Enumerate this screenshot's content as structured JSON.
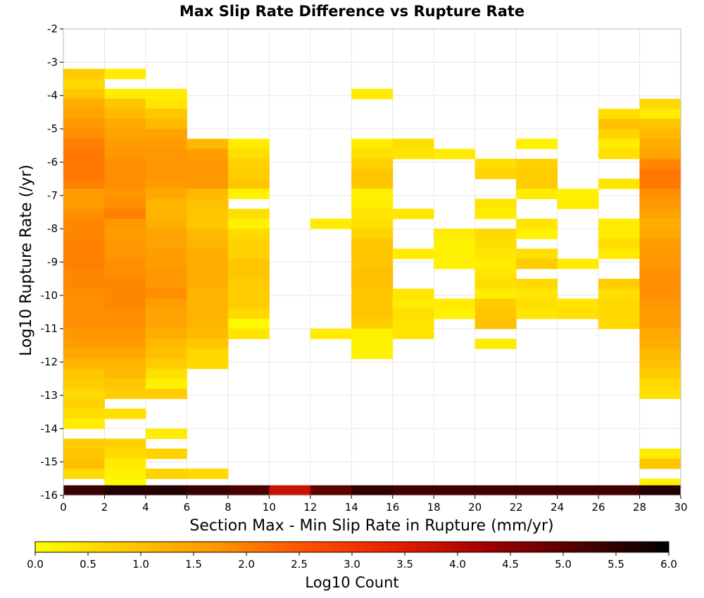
{
  "chart_data": {
    "type": "heatmap",
    "title": "Max Slip Rate Difference vs Rupture Rate",
    "xlabel": "Section Max - Min Slip Rate in Rupture (mm/yr)",
    "ylabel": "Log10 Rupture Rate (/yr)",
    "xlim": [
      0,
      30
    ],
    "ylim": [
      -16,
      -2
    ],
    "x_ticks": [
      "0",
      "2",
      "4",
      "6",
      "8",
      "10",
      "12",
      "14",
      "16",
      "18",
      "20",
      "22",
      "24",
      "26",
      "28",
      "30"
    ],
    "y_ticks": [
      "-2",
      "-3",
      "-4",
      "-5",
      "-6",
      "-7",
      "-8",
      "-9",
      "-10",
      "-11",
      "-12",
      "-13",
      "-14",
      "-15",
      "-16"
    ],
    "grid": true,
    "x_bin_width": 2,
    "y_bin_height": 0.3,
    "colorbar": {
      "label": "Log10 Count",
      "range": [
        0,
        6
      ],
      "ticks": [
        "0.0",
        "0.5",
        "1.0",
        "1.5",
        "2.0",
        "2.5",
        "3.0",
        "3.5",
        "4.0",
        "4.5",
        "5.0",
        "5.5",
        "6.0"
      ],
      "placement": "bottom",
      "colors": [
        "#ffff00",
        "#ffc800",
        "#ff9600",
        "#ff5000",
        "#e61e00",
        "#a00000",
        "#500000",
        "#000000"
      ]
    },
    "columns": [
      {
        "x": 0,
        "cells": [
          [
            -3.8,
            0.6
          ],
          [
            -3.5,
            0.8
          ],
          [
            -4.1,
            0.9
          ],
          [
            -4.4,
            1.3
          ],
          [
            -4.7,
            1.5
          ],
          [
            -5.0,
            1.7
          ],
          [
            -5.3,
            1.8
          ],
          [
            -5.6,
            2.0
          ],
          [
            -5.9,
            2.1
          ],
          [
            -6.2,
            2.1
          ],
          [
            -6.5,
            2.1
          ],
          [
            -6.8,
            2.0
          ],
          [
            -7.1,
            1.6
          ],
          [
            -7.4,
            1.6
          ],
          [
            -7.7,
            1.8
          ],
          [
            -8.0,
            1.9
          ],
          [
            -8.3,
            1.9
          ],
          [
            -8.6,
            2.0
          ],
          [
            -8.9,
            2.0
          ],
          [
            -9.2,
            2.0
          ],
          [
            -9.5,
            1.9
          ],
          [
            -9.8,
            1.9
          ],
          [
            -10.1,
            1.8
          ],
          [
            -10.4,
            1.8
          ],
          [
            -10.7,
            1.8
          ],
          [
            -11.0,
            1.8
          ],
          [
            -11.3,
            1.7
          ],
          [
            -11.6,
            1.6
          ],
          [
            -11.9,
            1.4
          ],
          [
            -12.2,
            1.2
          ],
          [
            -12.5,
            0.9
          ],
          [
            -12.8,
            0.8
          ],
          [
            -13.1,
            0.6
          ],
          [
            -13.4,
            0.7
          ],
          [
            -13.7,
            0.5
          ],
          [
            -14.0,
            0.3
          ],
          [
            -14.6,
            0.8
          ],
          [
            -14.9,
            0.9
          ],
          [
            -15.2,
            1.0
          ],
          [
            -15.5,
            0.6
          ],
          [
            -16.0,
            5.4
          ]
        ]
      },
      {
        "x": 2,
        "cells": [
          [
            -3.5,
            0.3
          ],
          [
            -4.1,
            0.3
          ],
          [
            -4.4,
            0.9
          ],
          [
            -4.7,
            1.1
          ],
          [
            -5.0,
            1.4
          ],
          [
            -5.3,
            1.5
          ],
          [
            -5.6,
            1.6
          ],
          [
            -5.9,
            1.7
          ],
          [
            -6.2,
            1.8
          ],
          [
            -6.5,
            1.8
          ],
          [
            -6.8,
            1.8
          ],
          [
            -7.1,
            1.7
          ],
          [
            -7.4,
            1.8
          ],
          [
            -7.7,
            2.0
          ],
          [
            -8.0,
            1.7
          ],
          [
            -8.3,
            1.6
          ],
          [
            -8.6,
            1.7
          ],
          [
            -8.9,
            1.7
          ],
          [
            -9.2,
            1.8
          ],
          [
            -9.5,
            1.8
          ],
          [
            -9.8,
            1.9
          ],
          [
            -10.1,
            1.9
          ],
          [
            -10.4,
            1.9
          ],
          [
            -10.7,
            1.8
          ],
          [
            -11.0,
            1.8
          ],
          [
            -11.3,
            1.7
          ],
          [
            -11.6,
            1.6
          ],
          [
            -11.9,
            1.4
          ],
          [
            -12.2,
            1.2
          ],
          [
            -12.5,
            1.1
          ],
          [
            -12.8,
            0.9
          ],
          [
            -13.1,
            0.8
          ],
          [
            -13.7,
            0.5
          ],
          [
            -14.6,
            0.7
          ],
          [
            -14.9,
            0.6
          ],
          [
            -15.2,
            0.3
          ],
          [
            -15.5,
            0.2
          ],
          [
            -15.8,
            0.1
          ],
          [
            -16.0,
            5.6
          ]
        ]
      },
      {
        "x": 4,
        "cells": [
          [
            -4.1,
            0.3
          ],
          [
            -4.4,
            0.4
          ],
          [
            -4.7,
            0.9
          ],
          [
            -5.0,
            1.1
          ],
          [
            -5.3,
            1.5
          ],
          [
            -5.6,
            1.6
          ],
          [
            -5.9,
            1.7
          ],
          [
            -6.2,
            1.7
          ],
          [
            -6.5,
            1.7
          ],
          [
            -6.8,
            1.6
          ],
          [
            -7.1,
            1.4
          ],
          [
            -7.4,
            1.2
          ],
          [
            -7.7,
            1.2
          ],
          [
            -8.0,
            1.3
          ],
          [
            -8.3,
            1.5
          ],
          [
            -8.6,
            1.5
          ],
          [
            -8.9,
            1.6
          ],
          [
            -9.2,
            1.6
          ],
          [
            -9.5,
            1.7
          ],
          [
            -9.8,
            1.7
          ],
          [
            -10.1,
            1.8
          ],
          [
            -10.4,
            1.6
          ],
          [
            -10.7,
            1.5
          ],
          [
            -11.0,
            1.5
          ],
          [
            -11.3,
            1.3
          ],
          [
            -11.6,
            1.1
          ],
          [
            -11.9,
            1.0
          ],
          [
            -12.2,
            0.8
          ],
          [
            -12.5,
            0.5
          ],
          [
            -12.8,
            0.2
          ],
          [
            -13.1,
            0.8
          ],
          [
            -14.3,
            0.3
          ],
          [
            -14.9,
            0.7
          ],
          [
            -15.5,
            0.7
          ],
          [
            -16.0,
            5.6
          ]
        ]
      },
      {
        "x": 6,
        "cells": [
          [
            -5.6,
            1.1
          ],
          [
            -5.9,
            1.6
          ],
          [
            -6.2,
            1.7
          ],
          [
            -6.5,
            1.7
          ],
          [
            -6.8,
            1.7
          ],
          [
            -7.1,
            1.1
          ],
          [
            -7.4,
            1.0
          ],
          [
            -7.7,
            0.9
          ],
          [
            -8.0,
            0.9
          ],
          [
            -8.3,
            1.1
          ],
          [
            -8.6,
            1.2
          ],
          [
            -8.9,
            1.3
          ],
          [
            -9.2,
            1.3
          ],
          [
            -9.5,
            1.3
          ],
          [
            -9.8,
            1.3
          ],
          [
            -10.1,
            1.2
          ],
          [
            -10.4,
            1.2
          ],
          [
            -10.7,
            1.2
          ],
          [
            -11.0,
            1.2
          ],
          [
            -11.3,
            1.1
          ],
          [
            -11.6,
            0.9
          ],
          [
            -11.9,
            0.6
          ],
          [
            -12.2,
            0.6
          ],
          [
            -15.5,
            0.6
          ],
          [
            -16.0,
            5.4
          ]
        ]
      },
      {
        "x": 8,
        "cells": [
          [
            -5.6,
            0.3
          ],
          [
            -5.9,
            0.5
          ],
          [
            -6.2,
            0.7
          ],
          [
            -6.5,
            0.8
          ],
          [
            -6.8,
            0.9
          ],
          [
            -7.1,
            0.2
          ],
          [
            -7.7,
            0.5
          ],
          [
            -8.0,
            0.2
          ],
          [
            -8.3,
            0.6
          ],
          [
            -8.6,
            0.7
          ],
          [
            -8.9,
            0.7
          ],
          [
            -9.2,
            0.9
          ],
          [
            -9.5,
            0.9
          ],
          [
            -9.8,
            0.8
          ],
          [
            -10.1,
            0.8
          ],
          [
            -10.4,
            0.8
          ],
          [
            -10.7,
            0.6
          ],
          [
            -11.0,
            0.1
          ],
          [
            -11.3,
            0.4
          ],
          [
            -16.0,
            5.2
          ]
        ]
      },
      {
        "x": 10,
        "cells": [
          [
            -16.0,
            3.8
          ]
        ]
      },
      {
        "x": 12,
        "cells": [
          [
            -8.0,
            0.3
          ],
          [
            -11.3,
            0.3
          ],
          [
            -16.0,
            5.0
          ]
        ]
      },
      {
        "x": 14,
        "cells": [
          [
            -4.1,
            0.3
          ],
          [
            -5.6,
            0.3
          ],
          [
            -5.9,
            0.5
          ],
          [
            -6.2,
            0.7
          ],
          [
            -6.5,
            0.9
          ],
          [
            -6.8,
            0.9
          ],
          [
            -7.1,
            0.2
          ],
          [
            -7.4,
            0.3
          ],
          [
            -7.7,
            0.4
          ],
          [
            -8.0,
            0.5
          ],
          [
            -8.3,
            0.7
          ],
          [
            -8.6,
            0.9
          ],
          [
            -8.9,
            0.9
          ],
          [
            -9.2,
            0.9
          ],
          [
            -9.5,
            1.0
          ],
          [
            -9.8,
            1.0
          ],
          [
            -10.1,
            0.9
          ],
          [
            -10.4,
            0.9
          ],
          [
            -10.7,
            0.9
          ],
          [
            -11.0,
            0.8
          ],
          [
            -11.3,
            0.2
          ],
          [
            -11.6,
            0.2
          ],
          [
            -11.9,
            0.2
          ],
          [
            -16.0,
            5.5
          ]
        ]
      },
      {
        "x": 16,
        "cells": [
          [
            -5.6,
            0.5
          ],
          [
            -5.9,
            0.4
          ],
          [
            -7.7,
            0.4
          ],
          [
            -8.9,
            0.3
          ],
          [
            -10.1,
            0.4
          ],
          [
            -10.4,
            0.3
          ],
          [
            -10.7,
            0.5
          ],
          [
            -11.0,
            0.4
          ],
          [
            -11.3,
            0.4
          ],
          [
            -16.0,
            5.3
          ]
        ]
      },
      {
        "x": 18,
        "cells": [
          [
            -5.9,
            0.3
          ],
          [
            -8.3,
            0.3
          ],
          [
            -8.6,
            0.2
          ],
          [
            -8.9,
            0.2
          ],
          [
            -9.2,
            0.2
          ],
          [
            -10.4,
            0.3
          ],
          [
            -10.7,
            0.2
          ],
          [
            -16.0,
            5.3
          ]
        ]
      },
      {
        "x": 20,
        "cells": [
          [
            -6.2,
            0.5
          ],
          [
            -6.5,
            0.7
          ],
          [
            -7.4,
            0.4
          ],
          [
            -7.7,
            0.3
          ],
          [
            -8.3,
            0.6
          ],
          [
            -8.6,
            0.5
          ],
          [
            -8.9,
            0.4
          ],
          [
            -9.2,
            0.3
          ],
          [
            -9.5,
            0.4
          ],
          [
            -9.8,
            0.5
          ],
          [
            -10.1,
            0.3
          ],
          [
            -10.4,
            0.8
          ],
          [
            -10.7,
            0.9
          ],
          [
            -11.0,
            1.0
          ],
          [
            -11.6,
            0.3
          ],
          [
            -16.0,
            5.3
          ]
        ]
      },
      {
        "x": 22,
        "cells": [
          [
            -5.6,
            0.2
          ],
          [
            -6.2,
            0.7
          ],
          [
            -6.5,
            0.8
          ],
          [
            -6.8,
            0.8
          ],
          [
            -7.1,
            0.3
          ],
          [
            -8.0,
            0.4
          ],
          [
            -8.3,
            0.2
          ],
          [
            -8.9,
            0.5
          ],
          [
            -9.2,
            0.8
          ],
          [
            -9.8,
            0.6
          ],
          [
            -10.1,
            0.4
          ],
          [
            -10.4,
            0.5
          ],
          [
            -10.7,
            0.4
          ],
          [
            -16.0,
            5.3
          ]
        ]
      },
      {
        "x": 24,
        "cells": [
          [
            -7.1,
            0.2
          ],
          [
            -7.4,
            0.3
          ],
          [
            -9.2,
            0.3
          ],
          [
            -10.4,
            0.4
          ],
          [
            -10.7,
            0.5
          ],
          [
            -16.0,
            5.3
          ]
        ]
      },
      {
        "x": 26,
        "cells": [
          [
            -4.7,
            0.5
          ],
          [
            -5.0,
            1.0
          ],
          [
            -5.3,
            0.7
          ],
          [
            -5.6,
            0.3
          ],
          [
            -5.9,
            0.5
          ],
          [
            -6.8,
            0.4
          ],
          [
            -8.0,
            0.3
          ],
          [
            -8.3,
            0.3
          ],
          [
            -8.6,
            0.5
          ],
          [
            -8.9,
            0.3
          ],
          [
            -9.8,
            0.8
          ],
          [
            -10.1,
            0.5
          ],
          [
            -10.4,
            0.6
          ],
          [
            -10.7,
            0.6
          ],
          [
            -11.0,
            0.6
          ],
          [
            -16.0,
            5.3
          ]
        ]
      },
      {
        "x": 28,
        "cells": [
          [
            -4.4,
            0.6
          ],
          [
            -4.7,
            0.3
          ],
          [
            -5.0,
            0.9
          ],
          [
            -5.3,
            1.1
          ],
          [
            -5.6,
            1.3
          ],
          [
            -5.9,
            1.5
          ],
          [
            -6.2,
            1.9
          ],
          [
            -6.5,
            2.1
          ],
          [
            -6.8,
            2.1
          ],
          [
            -7.1,
            1.8
          ],
          [
            -7.4,
            1.7
          ],
          [
            -7.7,
            1.5
          ],
          [
            -8.0,
            1.3
          ],
          [
            -8.3,
            1.4
          ],
          [
            -8.6,
            1.6
          ],
          [
            -8.9,
            1.7
          ],
          [
            -9.2,
            1.7
          ],
          [
            -9.5,
            1.8
          ],
          [
            -9.8,
            1.8
          ],
          [
            -10.1,
            1.8
          ],
          [
            -10.4,
            1.7
          ],
          [
            -10.7,
            1.6
          ],
          [
            -11.0,
            1.6
          ],
          [
            -11.3,
            1.4
          ],
          [
            -11.6,
            1.3
          ],
          [
            -11.9,
            1.1
          ],
          [
            -12.2,
            1.0
          ],
          [
            -12.5,
            0.8
          ],
          [
            -12.8,
            0.6
          ],
          [
            -13.1,
            0.5
          ],
          [
            -14.9,
            0.3
          ],
          [
            -15.2,
            0.9
          ],
          [
            -15.8,
            0.2
          ],
          [
            -16.0,
            5.6
          ]
        ]
      }
    ]
  }
}
